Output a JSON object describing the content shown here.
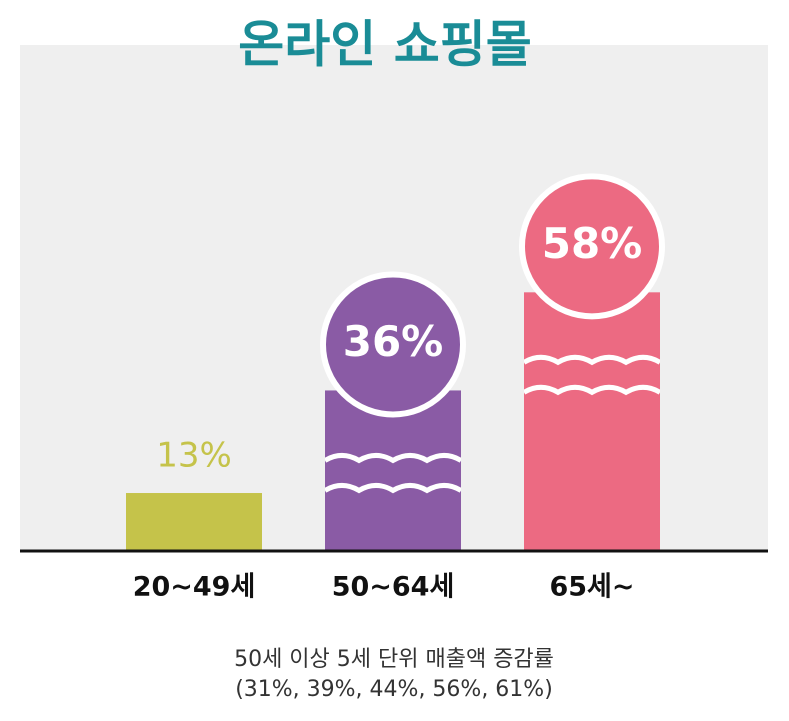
{
  "chart_data": {
    "type": "bar",
    "title": "온라인 쇼핑몰",
    "categories": [
      "20~49세",
      "50~64세",
      "65세~"
    ],
    "values": [
      13,
      36,
      58
    ],
    "value_labels": [
      "13%",
      "36%",
      "58%"
    ],
    "colors": [
      "#c5c34a",
      "#8a5ba5",
      "#ec6a82"
    ],
    "caption": [
      "50세 이상 5세 단위 매출액 증감률",
      "(31%, 39%, 44%, 56%, 61%)"
    ]
  }
}
